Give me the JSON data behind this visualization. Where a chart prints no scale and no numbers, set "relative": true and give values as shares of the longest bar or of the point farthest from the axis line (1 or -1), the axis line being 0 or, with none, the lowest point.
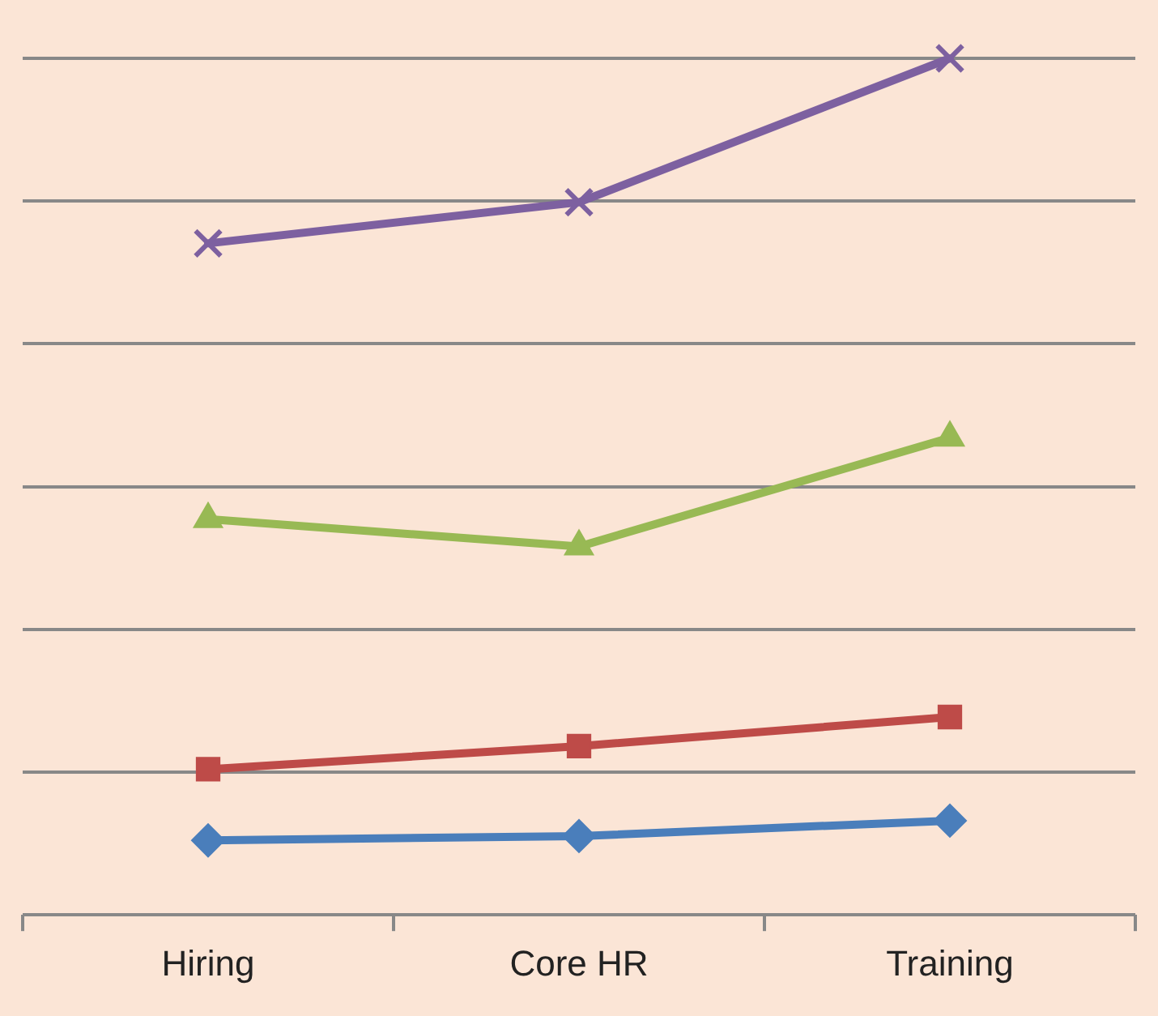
{
  "chart_data": {
    "type": "line",
    "relative": true,
    "grid": "y",
    "legend": false,
    "categories": [
      "Hiring",
      "Core HR",
      "Training"
    ],
    "series": [
      {
        "color": "#4a7ebb",
        "marker": "diamond",
        "values": [
          0.087,
          0.092,
          0.11
        ]
      },
      {
        "color": "#be4b48",
        "marker": "square",
        "values": [
          0.17,
          0.197,
          0.231
        ]
      },
      {
        "color": "#98b954",
        "marker": "triangle",
        "values": [
          0.462,
          0.43,
          0.557
        ]
      },
      {
        "color": "#7d60a0",
        "marker": "cross",
        "values": [
          0.784,
          0.832,
          1
        ]
      }
    ]
  }
}
